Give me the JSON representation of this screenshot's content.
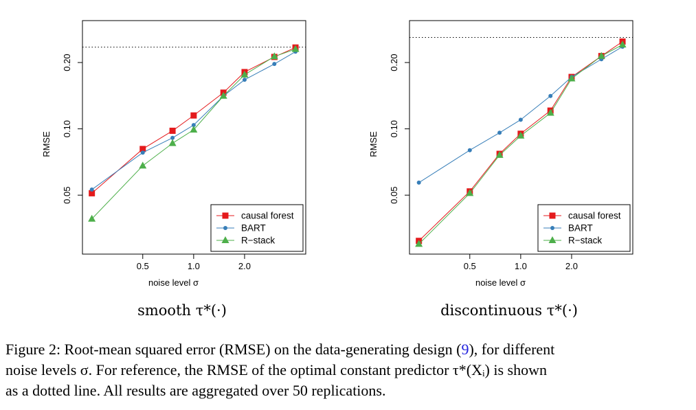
{
  "colors": {
    "causal_forest": "#e41a1c",
    "bart": "#377eb8",
    "rstack": "#4daf4a",
    "axis": "#000000"
  },
  "chart_data": [
    {
      "type": "line",
      "subtitle": "smooth τ*(·)",
      "xlabel": "noise level σ",
      "ylabel": "RMSE",
      "x_scale": "log",
      "y_scale": "log",
      "x": [
        0.25,
        0.5,
        0.75,
        1.0,
        1.5,
        2.0,
        3.0,
        4.0
      ],
      "x_ticks": [
        0.5,
        1.0,
        2.0
      ],
      "x_tick_labels": [
        "0.5",
        "1.0",
        "2.0"
      ],
      "y_ticks": [
        0.05,
        0.1,
        0.2
      ],
      "y_tick_labels": [
        "0.05",
        "0.10",
        "0.20"
      ],
      "xlim": [
        0.22,
        4.6
      ],
      "ylim": [
        0.027,
        0.31
      ],
      "reference_line": 0.235,
      "legend_position": "bottom-right",
      "series": [
        {
          "name": "causal forest",
          "marker": "square",
          "values": [
            0.051,
            0.081,
            0.098,
            0.115,
            0.146,
            0.181,
            0.212,
            0.234
          ]
        },
        {
          "name": "BART",
          "marker": "circle",
          "values": [
            0.053,
            0.078,
            0.091,
            0.104,
            0.141,
            0.167,
            0.197,
            0.224
          ]
        },
        {
          "name": "R−stack",
          "marker": "triangle",
          "values": [
            0.039,
            0.068,
            0.086,
            0.099,
            0.141,
            0.176,
            0.213,
            0.23
          ]
        }
      ]
    },
    {
      "type": "line",
      "subtitle": "discontinuous τ*(·)",
      "xlabel": "noise level σ",
      "ylabel": "RMSE",
      "x_scale": "log",
      "y_scale": "log",
      "x": [
        0.25,
        0.5,
        0.75,
        1.0,
        1.5,
        2.0,
        3.0,
        4.0
      ],
      "x_ticks": [
        0.5,
        1.0,
        2.0
      ],
      "x_tick_labels": [
        "0.5",
        "1.0",
        "2.0"
      ],
      "y_ticks": [
        0.05,
        0.1,
        0.2
      ],
      "y_tick_labels": [
        "0.05",
        "0.10",
        "0.20"
      ],
      "xlim": [
        0.22,
        4.6
      ],
      "ylim": [
        0.027,
        0.31
      ],
      "reference_line": 0.26,
      "legend_position": "bottom-right",
      "series": [
        {
          "name": "causal forest",
          "marker": "square",
          "values": [
            0.031,
            0.052,
            0.077,
            0.095,
            0.121,
            0.172,
            0.214,
            0.249
          ]
        },
        {
          "name": "BART",
          "marker": "circle",
          "values": [
            0.057,
            0.08,
            0.096,
            0.11,
            0.141,
            0.172,
            0.207,
            0.236
          ]
        },
        {
          "name": "R−stack",
          "marker": "triangle",
          "values": [
            0.03,
            0.051,
            0.076,
            0.093,
            0.118,
            0.169,
            0.214,
            0.241
          ]
        }
      ]
    }
  ],
  "caption": {
    "line1_before_ref": "Figure 2: Root-mean squared error (RMSE) on the data-generating design (",
    "ref": "9",
    "line1_after_ref": "), for different",
    "line2": "noise levels σ.  For reference, the RMSE of the optimal constant predictor τ*(Xᵢ) is shown",
    "line3": "as a dotted line.  All results are aggregated over 50 replications."
  }
}
